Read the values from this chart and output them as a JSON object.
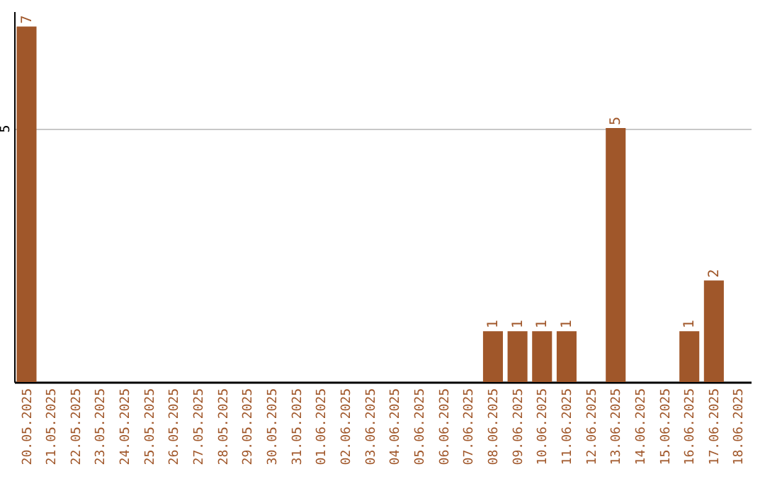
{
  "chart_data": {
    "type": "bar",
    "categories": [
      "20.05.2025",
      "21.05.2025",
      "22.05.2025",
      "23.05.2025",
      "24.05.2025",
      "25.05.2025",
      "26.05.2025",
      "27.05.2025",
      "28.05.2025",
      "29.05.2025",
      "30.05.2025",
      "31.05.2025",
      "01.06.2025",
      "02.06.2025",
      "03.06.2025",
      "04.06.2025",
      "05.06.2025",
      "06.06.2025",
      "07.06.2025",
      "08.06.2025",
      "09.06.2025",
      "10.06.2025",
      "11.06.2025",
      "12.06.2025",
      "13.06.2025",
      "14.06.2025",
      "15.06.2025",
      "16.06.2025",
      "17.06.2025",
      "18.06.2025"
    ],
    "values": [
      7,
      0,
      0,
      0,
      0,
      0,
      0,
      0,
      0,
      0,
      0,
      0,
      0,
      0,
      0,
      0,
      0,
      0,
      0,
      1,
      1,
      1,
      1,
      0,
      5,
      0,
      0,
      1,
      2,
      0
    ],
    "value_labels": [
      "7",
      null,
      null,
      null,
      null,
      null,
      null,
      null,
      null,
      null,
      null,
      null,
      null,
      null,
      null,
      null,
      null,
      null,
      null,
      "1",
      "1",
      "1",
      "1",
      null,
      "5",
      null,
      null,
      "1",
      "2",
      null
    ],
    "color": "#a0572a",
    "ylim": [
      0,
      7.3
    ],
    "yticks": [
      5
    ],
    "grid": "y"
  }
}
